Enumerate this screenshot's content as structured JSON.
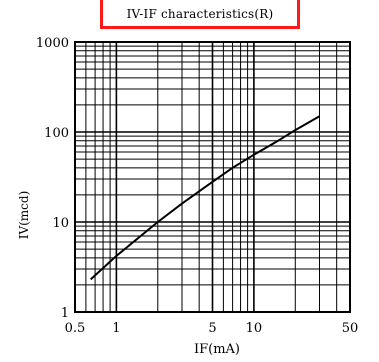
{
  "chart_data": {
    "type": "line",
    "title": "IV-IF characteristics(R)",
    "xlabel": "IF(mA)",
    "ylabel": "IV(mcd)",
    "x_scale": "log",
    "y_scale": "log",
    "xlim": [
      0.5,
      50
    ],
    "ylim": [
      1,
      1000
    ],
    "x_tick_labels": [
      {
        "value": 0.5,
        "label": "0.5"
      },
      {
        "value": 1,
        "label": "1"
      },
      {
        "value": 5,
        "label": "5"
      },
      {
        "value": 10,
        "label": "10"
      },
      {
        "value": 50,
        "label": "50"
      }
    ],
    "y_tick_labels": [
      {
        "value": 1,
        "label": "1"
      },
      {
        "value": 10,
        "label": "10"
      },
      {
        "value": 100,
        "label": "100"
      },
      {
        "value": 1000,
        "label": "1000"
      }
    ],
    "grid": true,
    "series": [
      {
        "x": [
          0.65,
          1,
          2,
          3,
          5,
          7,
          10,
          15,
          20,
          30
        ],
        "y": [
          2.3,
          4.2,
          10,
          16,
          28,
          40,
          56,
          80,
          105,
          150
        ]
      }
    ]
  }
}
